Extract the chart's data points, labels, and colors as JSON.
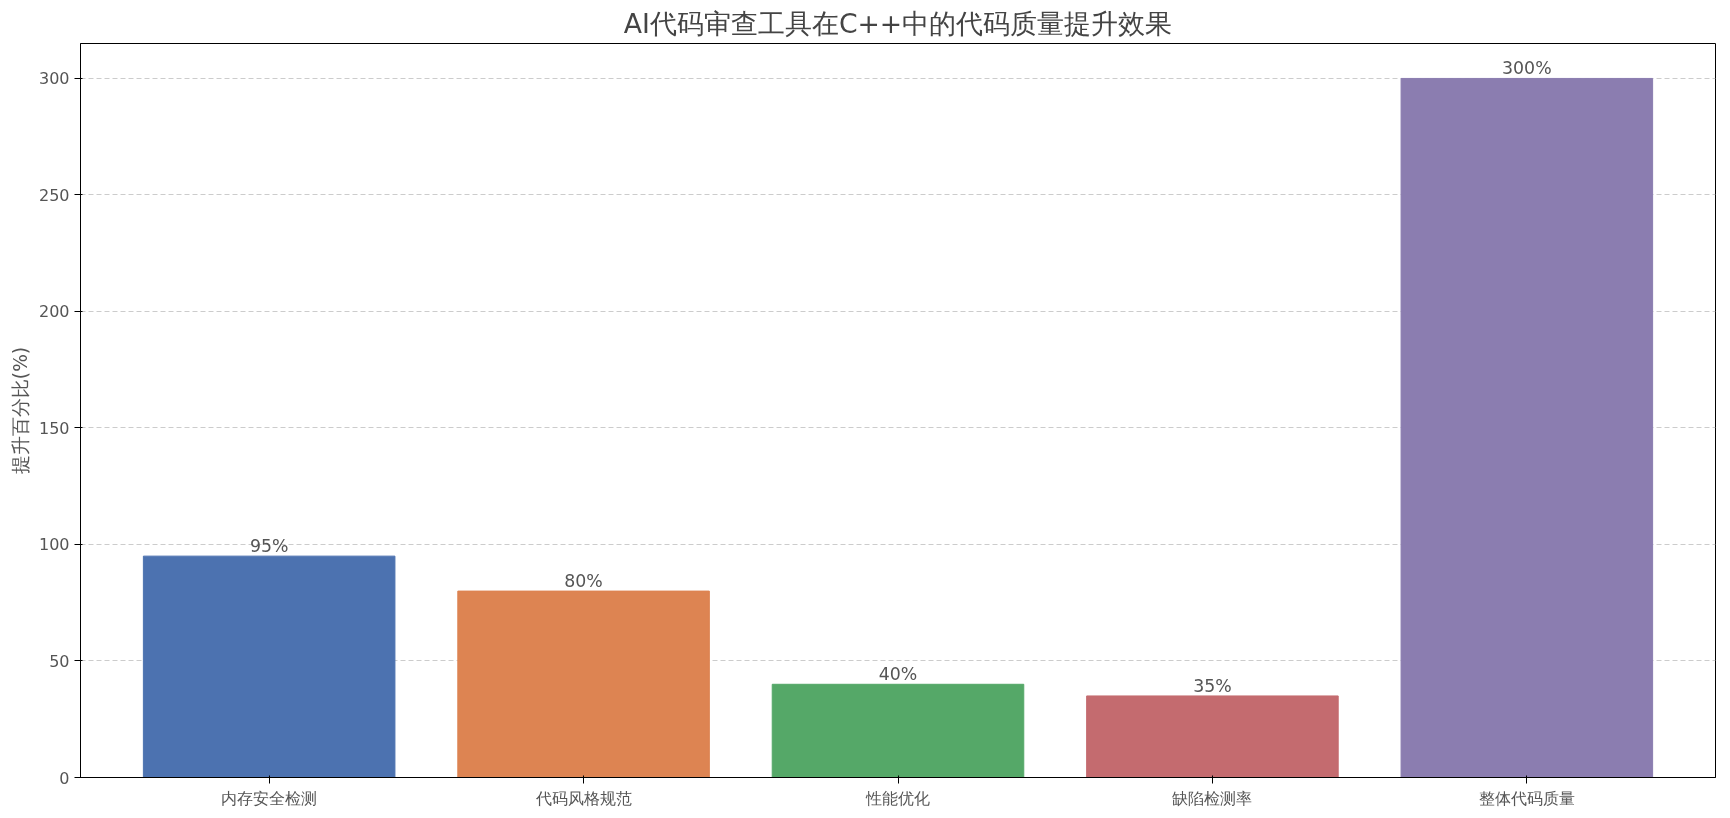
{
  "chart_data": {
    "type": "bar",
    "title": "AI代码审查工具在C++中的代码质量提升效果",
    "ylabel": "提升百分比(%)",
    "categories": [
      "内存安全检测",
      "代码风格规范",
      "性能优化",
      "缺陷检测率",
      "整体代码质量"
    ],
    "values": [
      95,
      80,
      40,
      35,
      300
    ],
    "colors": [
      "#4c72b0",
      "#dd8452",
      "#55a868",
      "#c46b6f",
      "#8b7db0"
    ],
    "value_labels": [
      "95%",
      "80%",
      "40%",
      "35%",
      "300%"
    ],
    "ylim": [
      0,
      315
    ],
    "yticks": [
      0,
      50,
      100,
      150,
      200,
      250,
      300
    ],
    "grid": "y"
  }
}
